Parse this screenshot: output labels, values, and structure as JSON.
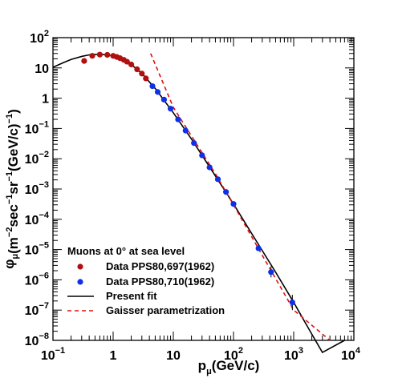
{
  "chart_data": {
    "type": "scatter",
    "x_axis": {
      "label": "p",
      "label_sub": "μ",
      "label_unit": "(GeV/c)",
      "scale": "log",
      "range": [
        0.1,
        10000
      ],
      "tick_labels": [
        {
          "value": 0.1,
          "base": "10",
          "exp": "−1"
        },
        {
          "value": 1,
          "base": "1",
          "exp": ""
        },
        {
          "value": 10,
          "base": "10",
          "exp": ""
        },
        {
          "value": 100,
          "base": "10",
          "exp": "2"
        },
        {
          "value": 1000,
          "base": "10",
          "exp": "3"
        },
        {
          "value": 10000,
          "base": "10",
          "exp": "4"
        }
      ]
    },
    "y_axis": {
      "label_phi": "φ",
      "label_sub": "μ",
      "label_parts": [
        {
          "t": "(m",
          "sup": false
        },
        {
          "t": "−2",
          "sup": true
        },
        {
          "t": "sec",
          "sup": false
        },
        {
          "t": "−1",
          "sup": true
        },
        {
          "t": "sr",
          "sup": false
        },
        {
          "t": "−1",
          "sup": true
        },
        {
          "t": "(GeV/c)",
          "sup": false
        },
        {
          "t": "−1",
          "sup": true
        },
        {
          "t": ")",
          "sup": false
        }
      ],
      "scale": "log",
      "range": [
        1e-08,
        100
      ],
      "tick_labels": [
        {
          "value": 100,
          "base": "10",
          "exp": "2"
        },
        {
          "value": 10,
          "base": "10",
          "exp": ""
        },
        {
          "value": 1,
          "base": "1",
          "exp": ""
        },
        {
          "value": 0.1,
          "base": "10",
          "exp": "−1"
        },
        {
          "value": 0.01,
          "base": "10",
          "exp": "−2"
        },
        {
          "value": 0.001,
          "base": "10",
          "exp": "−3"
        },
        {
          "value": 0.0001,
          "base": "10",
          "exp": "−4"
        },
        {
          "value": 1e-05,
          "base": "10",
          "exp": "−5"
        },
        {
          "value": 1e-06,
          "base": "10",
          "exp": "−6"
        },
        {
          "value": 1e-07,
          "base": "10",
          "exp": "−7"
        },
        {
          "value": 1e-08,
          "base": "10",
          "exp": "−8"
        }
      ]
    },
    "legend": {
      "title": "Muons at 0° at sea level",
      "placement": "bottom-left"
    },
    "series": [
      {
        "name": "Data PPS80,697(1962)",
        "kind": "points",
        "color": "#b01010",
        "points": [
          {
            "x": 0.33,
            "y": 17
          },
          {
            "x": 0.45,
            "y": 25
          },
          {
            "x": 0.6,
            "y": 27.5
          },
          {
            "x": 0.8,
            "y": 27
          },
          {
            "x": 1.0,
            "y": 25
          },
          {
            "x": 1.15,
            "y": 23
          },
          {
            "x": 1.3,
            "y": 21
          },
          {
            "x": 1.5,
            "y": 18.5
          },
          {
            "x": 1.7,
            "y": 16
          },
          {
            "x": 2.0,
            "y": 13
          },
          {
            "x": 2.5,
            "y": 9
          },
          {
            "x": 3.0,
            "y": 6.5
          },
          {
            "x": 3.5,
            "y": 4.5
          }
        ]
      },
      {
        "name": "Data PPS80,710(1962)",
        "kind": "points",
        "color": "#1030e8",
        "points": [
          {
            "x": 4.5,
            "y": 2.5
          },
          {
            "x": 5.5,
            "y": 1.6
          },
          {
            "x": 7,
            "y": 0.9
          },
          {
            "x": 9,
            "y": 0.45
          },
          {
            "x": 12,
            "y": 0.2
          },
          {
            "x": 16,
            "y": 0.085
          },
          {
            "x": 22,
            "y": 0.033
          },
          {
            "x": 30,
            "y": 0.013
          },
          {
            "x": 40,
            "y": 0.0052
          },
          {
            "x": 55,
            "y": 0.0021
          },
          {
            "x": 75,
            "y": 0.0008
          },
          {
            "x": 100,
            "y": 0.00032
          },
          {
            "x": 260,
            "y": 1.1e-05,
            "err_lo": 9e-06,
            "err_hi": 1.4e-05
          },
          {
            "x": 420,
            "y": 1.8e-06,
            "err_lo": 1.2e-06,
            "err_hi": 2.8e-06
          },
          {
            "x": 950,
            "y": 1.8e-07,
            "err_lo": 1e-07,
            "err_hi": 3.2e-07
          }
        ]
      },
      {
        "name": "Present fit",
        "kind": "line",
        "color": "#000000",
        "dash": "solid",
        "points": [
          {
            "x": 0.1,
            "y": 10.5
          },
          {
            "x": 0.15,
            "y": 15
          },
          {
            "x": 0.2,
            "y": 19
          },
          {
            "x": 0.3,
            "y": 24
          },
          {
            "x": 0.4,
            "y": 27
          },
          {
            "x": 0.5,
            "y": 28
          },
          {
            "x": 0.6,
            "y": 28
          },
          {
            "x": 0.8,
            "y": 27
          },
          {
            "x": 1,
            "y": 25
          },
          {
            "x": 1.5,
            "y": 19
          },
          {
            "x": 2,
            "y": 13
          },
          {
            "x": 3,
            "y": 6.5
          },
          {
            "x": 5,
            "y": 2.1
          },
          {
            "x": 10,
            "y": 0.33
          },
          {
            "x": 20,
            "y": 0.045
          },
          {
            "x": 50,
            "y": 0.0027
          },
          {
            "x": 100,
            "y": 0.00032
          },
          {
            "x": 200,
            "y": 3.4e-05
          },
          {
            "x": 500,
            "y": 1.8e-06
          },
          {
            "x": 1000,
            "y": 1.8e-07
          },
          {
            "x": 2000,
            "y": 1.6e-08
          },
          {
            "x": 3000,
            "y": 4e-09
          },
          {
            "x": 7000,
            "y": 1e-08
          }
        ]
      },
      {
        "name": "Gaisser parametrization",
        "kind": "line",
        "color": "#e01010",
        "dash": "dashed",
        "points": [
          {
            "x": 4.2,
            "y": 30
          },
          {
            "x": 10,
            "y": 0.5
          },
          {
            "x": 50,
            "y": 0.0032
          },
          {
            "x": 100,
            "y": 0.0003
          },
          {
            "x": 300,
            "y": 6.5e-06
          },
          {
            "x": 1000,
            "y": 1e-07
          },
          {
            "x": 4000,
            "y": 1e-08
          }
        ]
      }
    ]
  }
}
